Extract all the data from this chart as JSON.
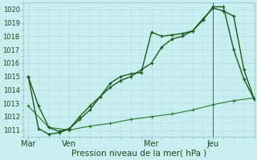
{
  "title": "Pression niveau de la mer( hPa )",
  "bg_color": "#c8eef0",
  "grid_color": "#b0dce0",
  "line_color_dark": "#1a5c1a",
  "line_color_med": "#2a7a2a",
  "ylim": [
    1010.5,
    1020.5
  ],
  "yticks": [
    1011,
    1012,
    1013,
    1014,
    1015,
    1016,
    1017,
    1018,
    1019,
    1020
  ],
  "xtick_labels": [
    "Mar",
    "Ven",
    "Mer",
    "Jeu"
  ],
  "xtick_pos": [
    0,
    16,
    48,
    72
  ],
  "xlim": [
    -2,
    88
  ],
  "vline_pos": 72,
  "series1_x": [
    0,
    4,
    8,
    12,
    16,
    20,
    24,
    28,
    32,
    36,
    40,
    44,
    48,
    52,
    56,
    60,
    64,
    68,
    72,
    76,
    80,
    84,
    88
  ],
  "series1_y": [
    1015.0,
    1012.8,
    1011.2,
    1010.9,
    1011.1,
    1011.8,
    1012.5,
    1013.5,
    1014.5,
    1015.0,
    1015.2,
    1015.3,
    1018.3,
    1018.0,
    1018.1,
    1018.2,
    1018.4,
    1019.3,
    1020.1,
    1019.9,
    1019.5,
    1015.5,
    1013.3
  ],
  "series2_x": [
    0,
    4,
    8,
    12,
    16,
    20,
    24,
    28,
    32,
    36,
    40,
    44,
    48,
    52,
    56,
    60,
    64,
    68,
    72,
    76,
    80,
    84,
    88
  ],
  "series2_y": [
    1015.0,
    1011.1,
    1010.7,
    1010.8,
    1011.1,
    1012.0,
    1012.8,
    1013.5,
    1014.2,
    1014.7,
    1015.0,
    1015.5,
    1016.0,
    1017.2,
    1017.8,
    1018.0,
    1018.4,
    1019.2,
    1020.2,
    1020.2,
    1017.0,
    1014.8,
    1013.3
  ],
  "series3_x": [
    0,
    8,
    16,
    24,
    32,
    40,
    48,
    56,
    64,
    72,
    80,
    88
  ],
  "series3_y": [
    1012.8,
    1011.2,
    1011.0,
    1011.3,
    1011.5,
    1011.8,
    1012.0,
    1012.2,
    1012.5,
    1012.9,
    1013.2,
    1013.4
  ],
  "marker_size": 3.5,
  "linewidth": 1.0
}
